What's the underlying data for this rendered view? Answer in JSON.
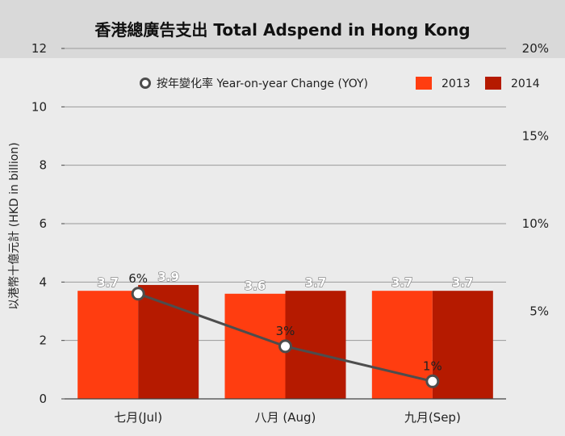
{
  "chart_data": {
    "type": "bar",
    "title": "香港總廣告支出 Total Adspend in Hong Kong",
    "ylabel": "以港幣十億元計 (HKD in billion)",
    "categories": [
      "七月(Jul)",
      "八月 (Aug)",
      "九月(Sep)"
    ],
    "ylim": [
      0,
      12
    ],
    "yticks": [
      0,
      2,
      4,
      6,
      8,
      10,
      12
    ],
    "y2lim": [
      0,
      20
    ],
    "y2ticks": [
      "5%",
      "10%",
      "15%",
      "20%"
    ],
    "y2tick_values": [
      5,
      10,
      15,
      20
    ],
    "grid": true,
    "legend_position": "top-right",
    "series": [
      {
        "name": "2013",
        "values": [
          3.7,
          3.6,
          3.7
        ],
        "labels": [
          "3.7",
          "3.6",
          "3.7"
        ],
        "color": "#ff3d10",
        "axis": "left",
        "kind": "bar"
      },
      {
        "name": "2014",
        "values": [
          3.9,
          3.7,
          3.7
        ],
        "labels": [
          "3.9",
          "3.7",
          "3.7"
        ],
        "color": "#b51a00",
        "axis": "left",
        "kind": "bar"
      },
      {
        "name": "按年變化率 Year-on-year Change (YOY)",
        "values": [
          6,
          3,
          1
        ],
        "labels": [
          "6%",
          "3%",
          "1%"
        ],
        "color": "#4d4d4d",
        "axis": "right",
        "kind": "line"
      }
    ]
  }
}
